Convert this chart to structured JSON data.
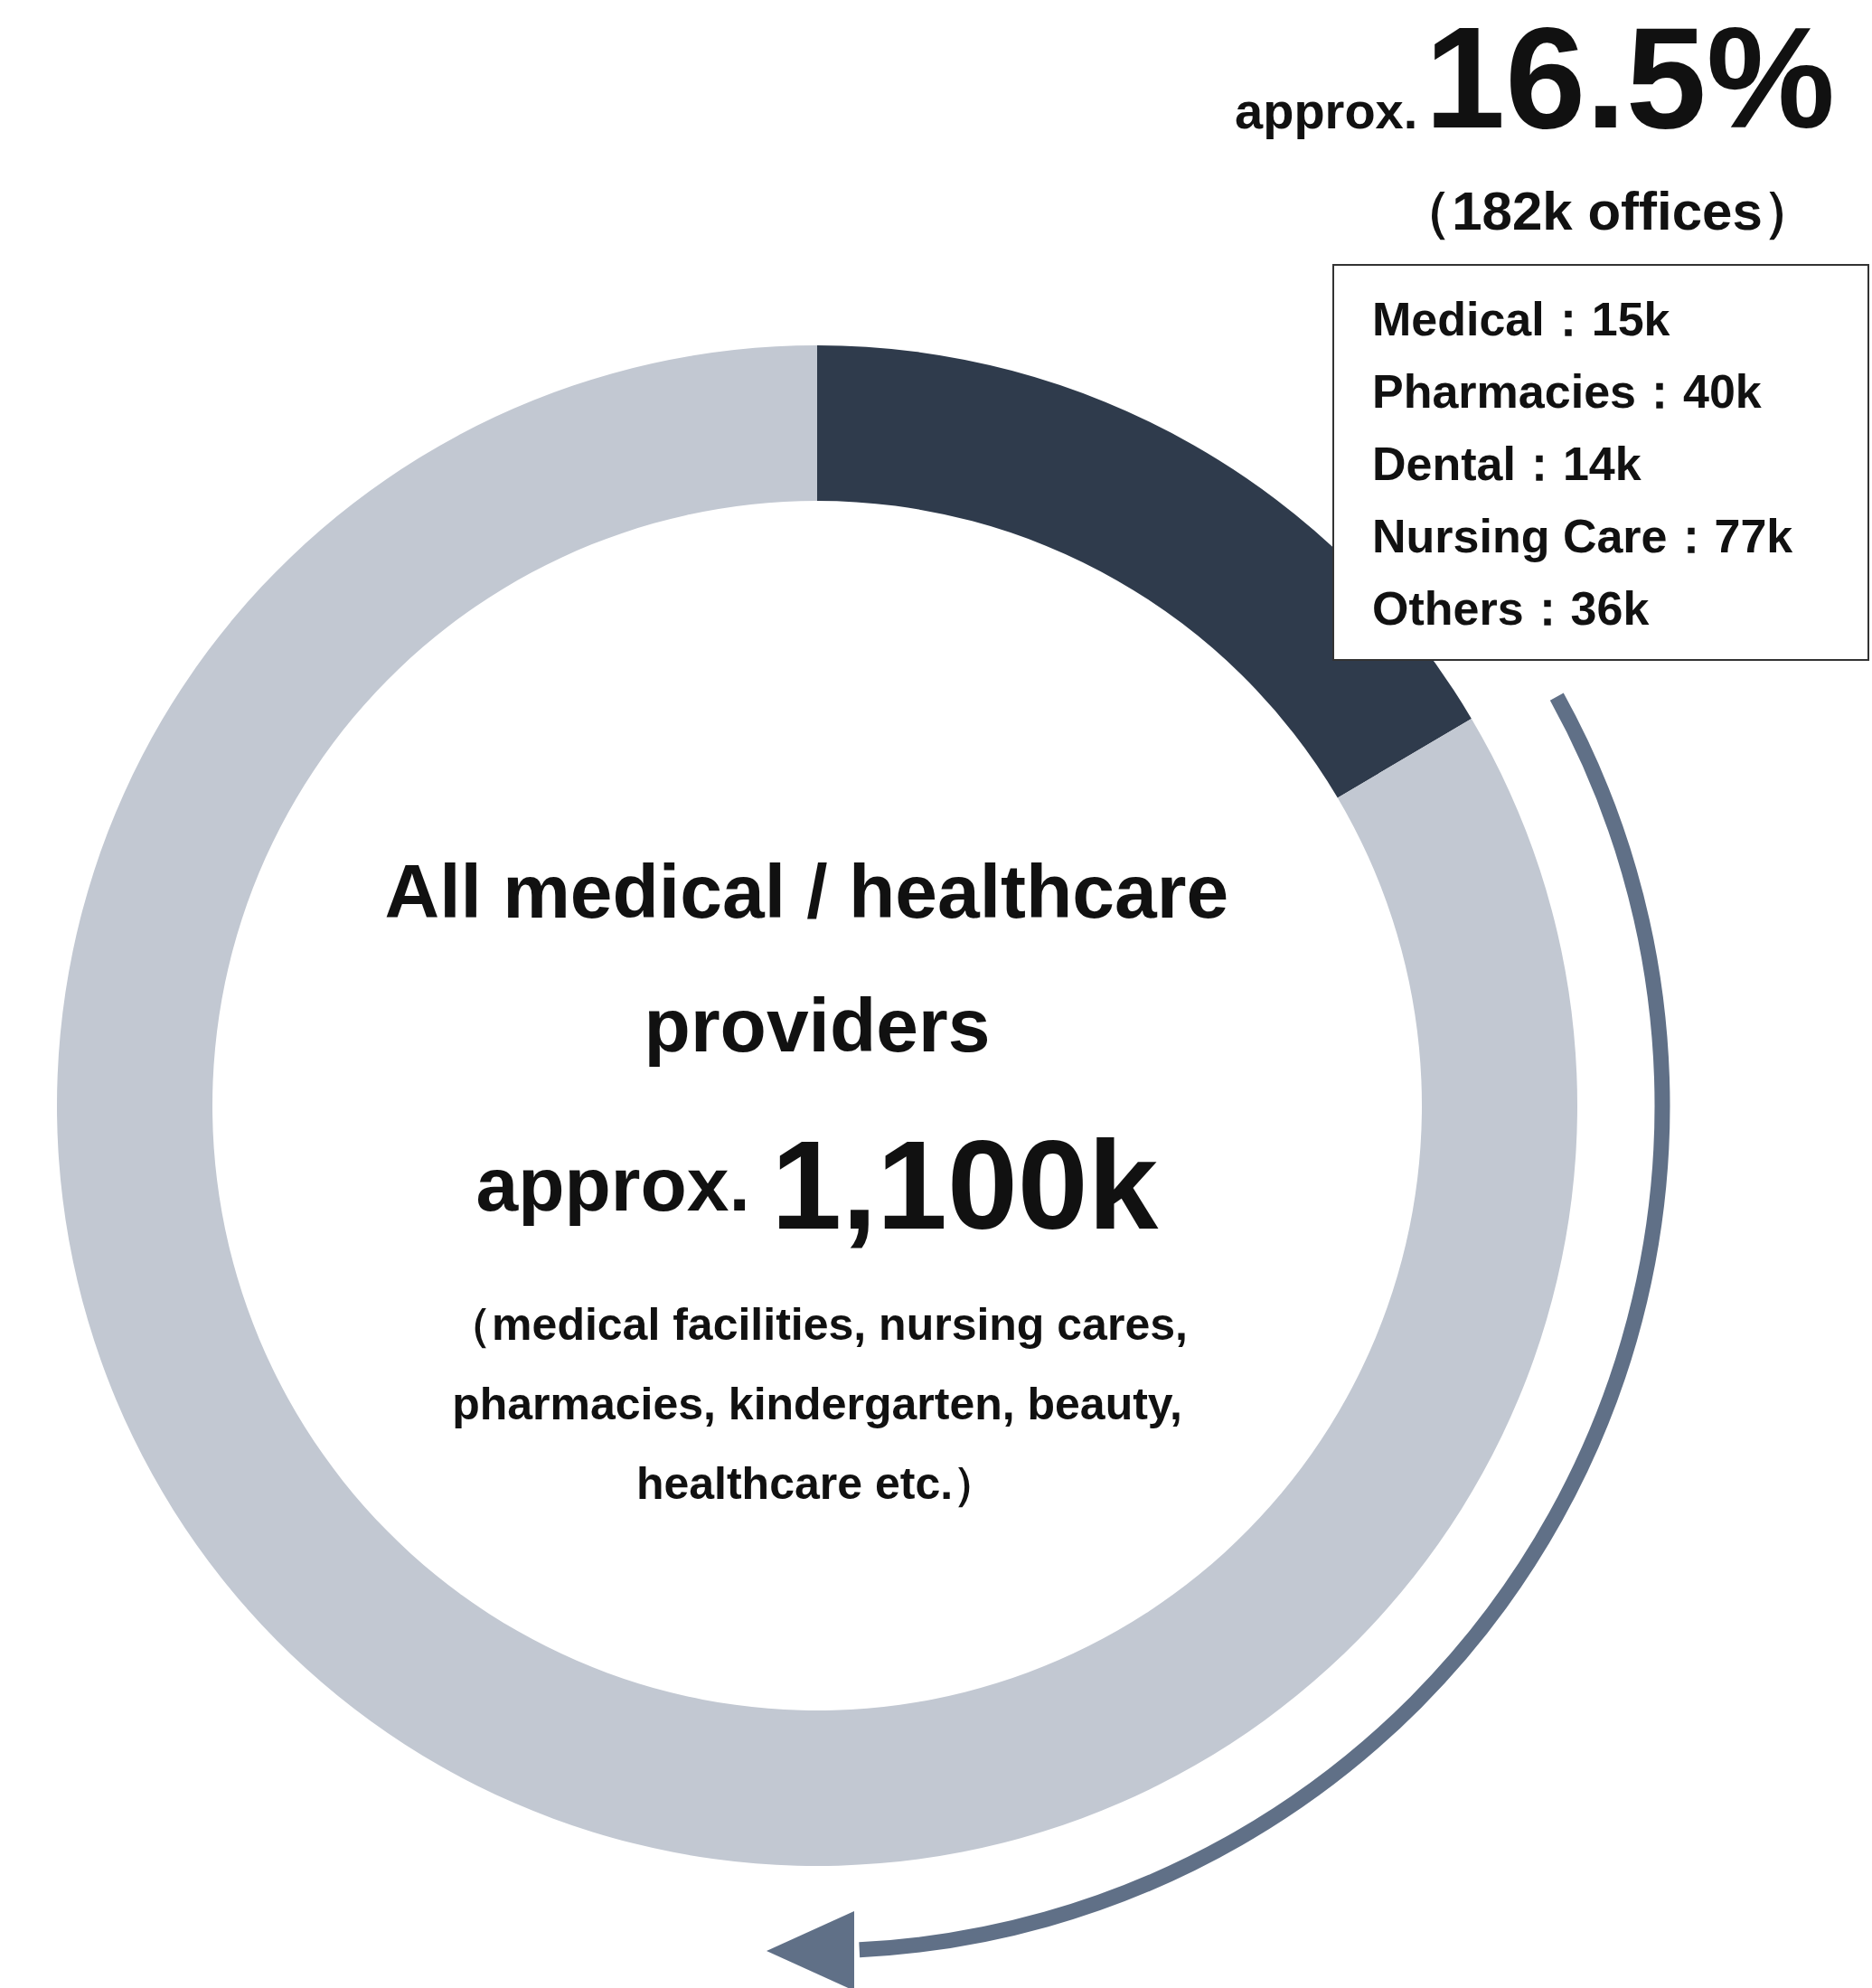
{
  "chart_data": {
    "type": "donut",
    "title": "All medical / healthcare providers",
    "subtitle": "（medical facilities, nursing cares, pharmacies, kindergarten, beauty, healthcare etc.）",
    "categories": [
      null,
      null
    ],
    "values": [
      16.5,
      83.5
    ],
    "colors": [
      "#2f3b4c",
      "#c2c8d2"
    ],
    "value_labels": [
      "16.5%",
      null
    ],
    "annotations": [
      "approx.",
      "approx. 1,100k",
      "（182k offices）",
      "Medical：15k",
      "Pharmacies：40k",
      "Dental：14k",
      "Nursing Care：77k",
      "Others：36k"
    ],
    "legend": false
  }
}
